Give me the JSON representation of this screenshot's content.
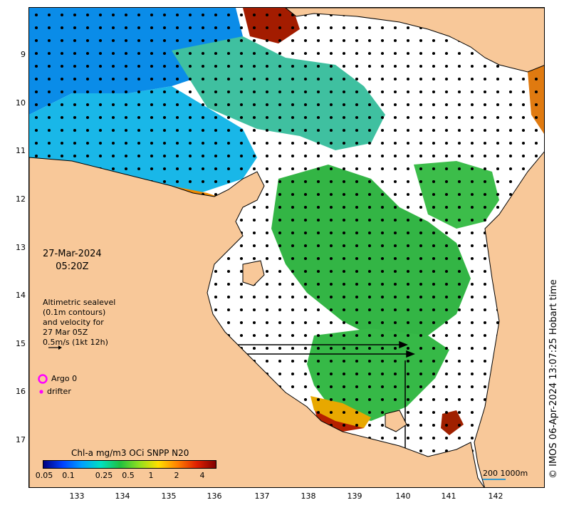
{
  "map": {
    "date": "27-Mar-2024",
    "time": "05:20Z",
    "credit": "© IMOS 06-Apr-2024 13:07:25 Hobart time",
    "colors": {
      "land": "#f8c899",
      "ocean_blank": "#ffffff",
      "argo": "#ff00ff",
      "drifter": "#ff00ff"
    }
  },
  "axes": {
    "y_ticks": [
      "9",
      "10",
      "11",
      "12",
      "13",
      "14",
      "15",
      "16",
      "17"
    ],
    "x_ticks": [
      "133",
      "134",
      "135",
      "136",
      "137",
      "138",
      "139",
      "140",
      "141",
      "142"
    ]
  },
  "legend": {
    "sealevel_lines": [
      "Altimetric sealevel",
      "(0.1m contours)",
      "and velocity for",
      "27 Mar 05Z",
      "0.5m/s (1kt 12h)"
    ],
    "argo_label": "Argo 0",
    "drifter_label": "drifter"
  },
  "colorbar": {
    "title": "Chl-a mg/m3 OCi SNPP N20",
    "labels": [
      "0.05",
      "0.1",
      "0.25",
      "0.5",
      "1",
      "2",
      "4"
    ],
    "stops": [
      "#00007f",
      "#0040ff",
      "#00a0ff",
      "#00e0c0",
      "#20c040",
      "#90e020",
      "#ffe000",
      "#ff8000",
      "#e02000",
      "#800000"
    ]
  },
  "scale": {
    "label": "200  1000m"
  }
}
